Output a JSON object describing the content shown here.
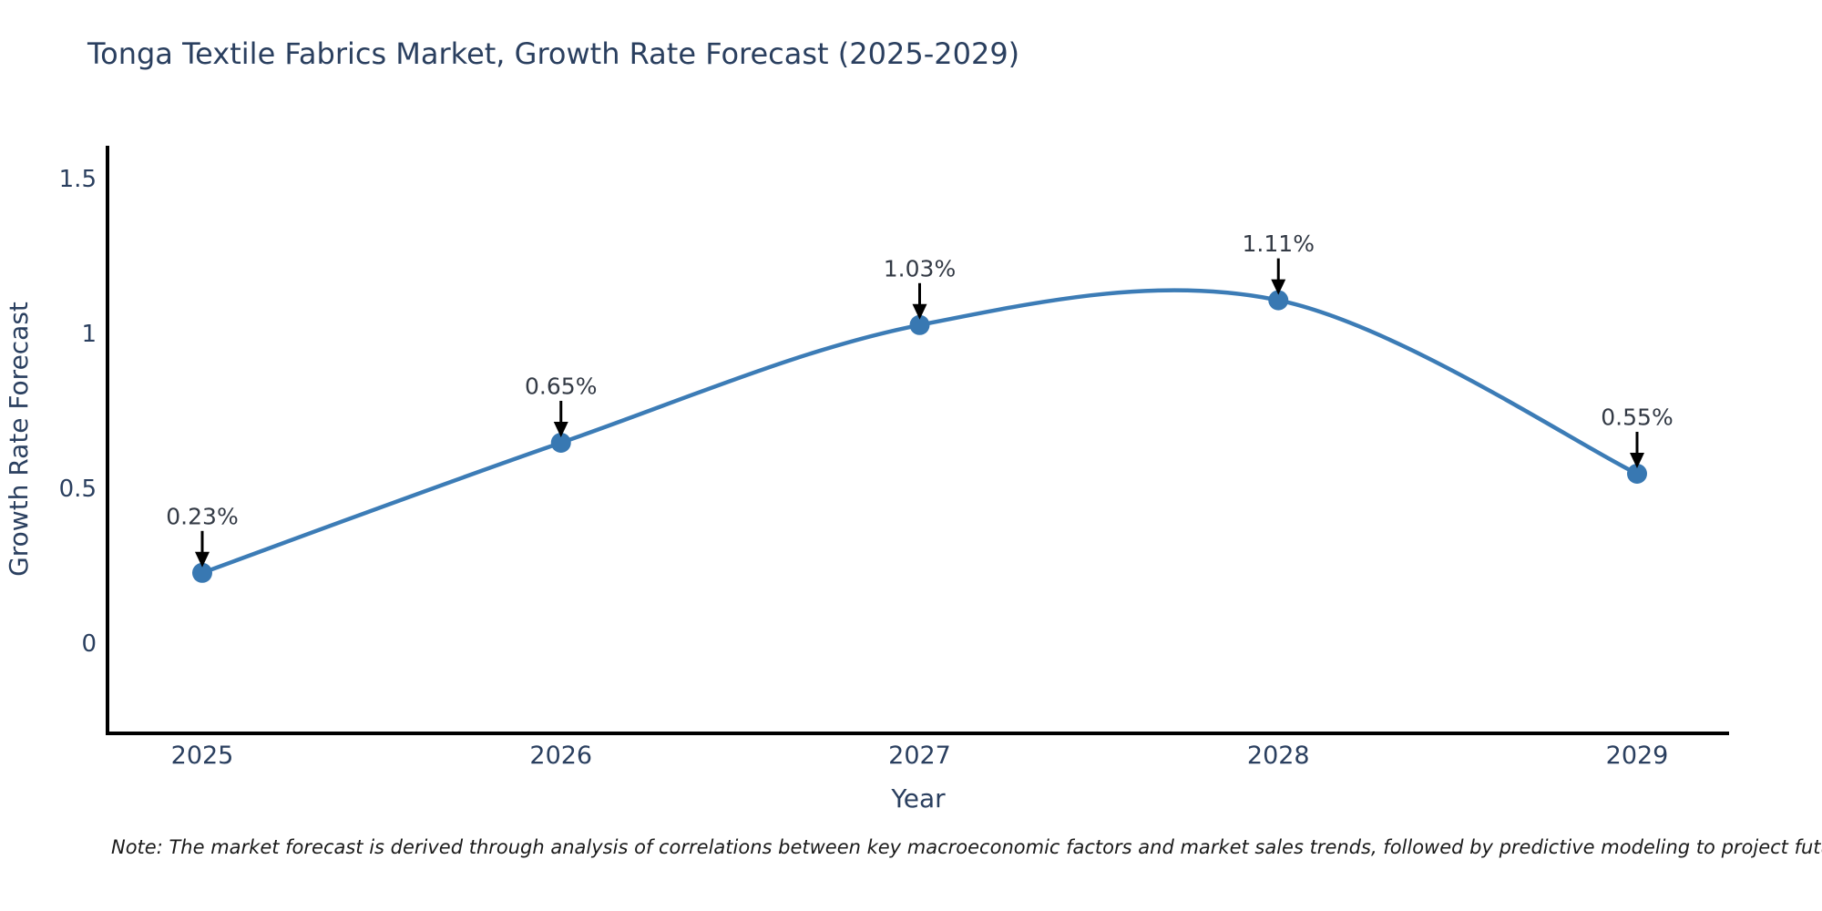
{
  "page": {
    "title": "Tonga Textile Fabrics Market, Growth Rate Forecast (2025-2029)",
    "note": "Note: The market forecast is derived through analysis of correlations between key macroeconomic factors and market sales trends, followed by predictive modeling to project future sales"
  },
  "chart_data": {
    "type": "line",
    "title": "Tonga Textile Fabrics Market, Growth Rate Forecast (2025-2029)",
    "categories": [
      "2025",
      "2026",
      "2027",
      "2028",
      "2029"
    ],
    "series": [
      {
        "name": "Growth Rate Forecast",
        "values": [
          0.23,
          0.65,
          1.03,
          1.11,
          0.55
        ],
        "labels": [
          "0.23%",
          "0.65%",
          "1.03%",
          "1.11%",
          "0.55%"
        ]
      }
    ],
    "xlabel": "Year",
    "ylabel": "Growth Rate Forecast",
    "yticks": [
      "0",
      "0.5",
      "1",
      "1.5"
    ],
    "ytick_values": [
      0,
      0.5,
      1,
      1.5
    ],
    "ylim": [
      -0.29,
      1.61
    ],
    "grid": false,
    "legend": "none",
    "line_shape": "spline",
    "marker": "circle",
    "annotation_style": "value label with downward black arrow above each point",
    "colors": {
      "line": "#3c7cb6",
      "marker": "#3878b2",
      "axis": "#000000",
      "title": "#2a3f5f",
      "tick_label": "#2a3f5f",
      "axis_label": "#2a3f5f",
      "annotation_text": "#333a45",
      "arrow": "#000000",
      "note_text": "#1a1a1a",
      "background": "#ffffff"
    }
  }
}
